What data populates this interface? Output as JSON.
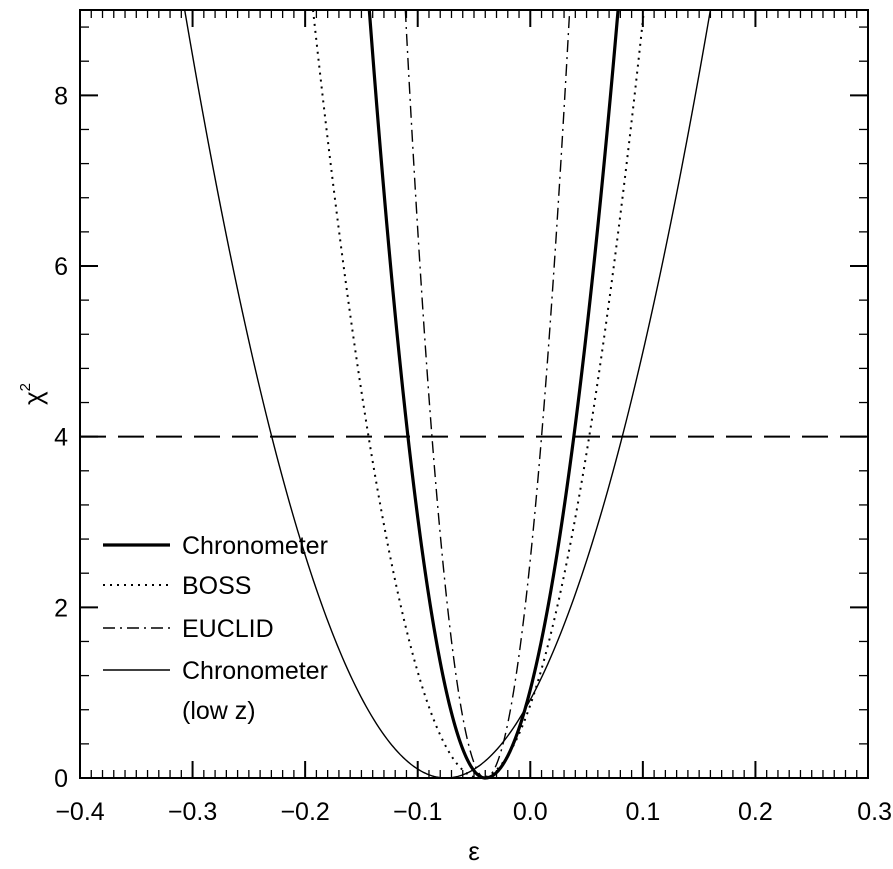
{
  "chart_data": {
    "type": "line",
    "xlabel": "ε",
    "ylabel_base": "χ",
    "ylabel_sup": "2",
    "xlim": [
      -0.4,
      0.3
    ],
    "ylim": [
      0,
      9
    ],
    "x_ticks": [
      -0.4,
      -0.3,
      -0.2,
      -0.1,
      0.0,
      0.1,
      0.2,
      0.3
    ],
    "x_tick_labels": [
      "−0.4",
      "−0.3",
      "−0.2",
      "−0.1",
      "0.0",
      "0.1",
      "0.2",
      "0.3"
    ],
    "x_minor_step": 0.01,
    "y_ticks": [
      0,
      2,
      4,
      6,
      8
    ],
    "y_tick_labels": [
      "0",
      "2",
      "4",
      "6",
      "8"
    ],
    "y_minor_step": 0.4,
    "grid": false,
    "legend_position": "lower-left",
    "reference_lines": [
      {
        "axis": "y",
        "value": 4,
        "style": "dashed"
      }
    ],
    "series": [
      {
        "name": "Chronometer",
        "style": "thick-solid",
        "model": "parabola",
        "min_x": -0.04,
        "min_y": 0.0,
        "points": [
          [
            -0.143,
            9.0
          ],
          [
            -0.111,
            4.0
          ],
          [
            -0.04,
            0.0
          ],
          [
            0.042,
            4.0
          ],
          [
            0.078,
            9.0
          ]
        ]
      },
      {
        "name": "BOSS",
        "style": "dotted",
        "model": "parabola",
        "min_x": -0.045,
        "min_y": 0.0,
        "points": [
          [
            -0.193,
            9.0
          ],
          [
            -0.145,
            4.0
          ],
          [
            -0.045,
            0.0
          ],
          [
            0.058,
            4.0
          ],
          [
            0.101,
            9.0
          ]
        ]
      },
      {
        "name": "EUCLID",
        "style": "dash-dot",
        "model": "parabola",
        "min_x": -0.04,
        "min_y": 0.0,
        "points": [
          [
            -0.111,
            9.0
          ],
          [
            -0.086,
            4.0
          ],
          [
            -0.04,
            0.0
          ],
          [
            0.011,
            4.0
          ],
          [
            0.035,
            9.0
          ]
        ]
      },
      {
        "name": "Chronometer",
        "name_line2": "(low z)",
        "style": "thin-solid",
        "model": "parabola",
        "min_x": -0.075,
        "min_y": 0.0,
        "points": [
          [
            -0.307,
            9.0
          ],
          [
            -0.265,
            4.0
          ],
          [
            -0.075,
            0.0
          ],
          [
            0.091,
            4.0
          ],
          [
            0.16,
            9.0
          ]
        ]
      }
    ]
  }
}
